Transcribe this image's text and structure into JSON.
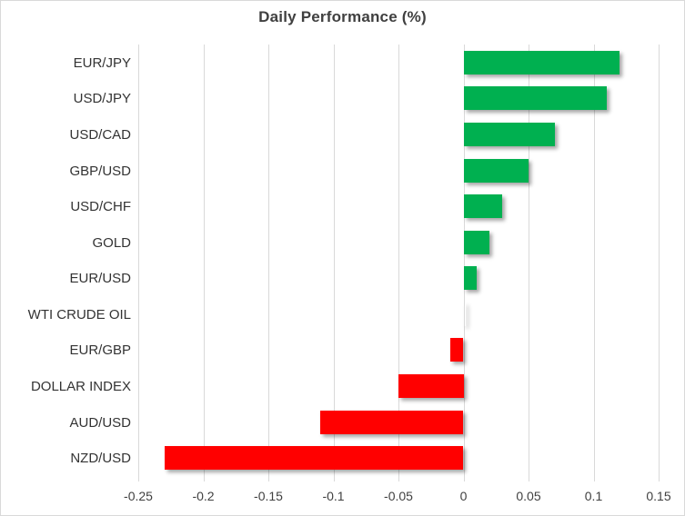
{
  "chart_data": {
    "type": "bar",
    "orientation": "horizontal",
    "title": "Daily Performance (%)",
    "xlabel": "",
    "ylabel": "",
    "categories": [
      "EUR/JPY",
      "USD/JPY",
      "USD/CAD",
      "GBP/USD",
      "USD/CHF",
      "GOLD",
      "EUR/USD",
      "WTI CRUDE OIL",
      "EUR/GBP",
      "DOLLAR INDEX",
      "AUD/USD",
      "NZD/USD"
    ],
    "values": [
      0.12,
      0.11,
      0.07,
      0.05,
      0.03,
      0.02,
      0.01,
      0.0,
      -0.01,
      -0.05,
      -0.11,
      -0.23
    ],
    "xlim": [
      -0.25,
      0.15
    ],
    "tick_values": [
      -0.25,
      -0.2,
      -0.15,
      -0.1,
      -0.05,
      0,
      0.05,
      0.1,
      0.15
    ],
    "tick_labels": [
      "-0.25",
      "-0.2",
      "-0.15",
      "-0.1",
      "-0.05",
      "0",
      "0.05",
      "0.1",
      "0.15"
    ],
    "grid": "vertical-on",
    "legend": "none",
    "colors": {
      "positive": "#00B050",
      "negative": "#FF0000",
      "gridline": "#d9d9d9",
      "title_text": "#404040",
      "label_text": "#333333"
    }
  }
}
